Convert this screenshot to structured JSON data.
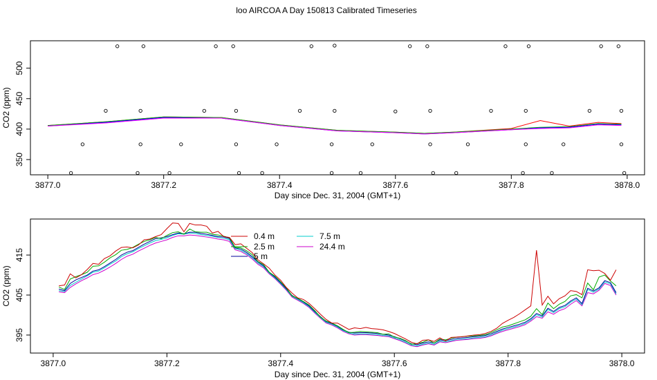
{
  "title": "loo AIRCOA A  Day 150813  Calibrated Timeseries",
  "chart_data": [
    {
      "type": "line",
      "xlabel": "Day since Dec. 31, 2004 (GMT+1)",
      "ylabel": "CO2 (ppm)",
      "xlim": [
        3876.97,
        3878.03
      ],
      "ylim": [
        325,
        545
      ],
      "xticks": [
        "3877.0",
        "3877.2",
        "3877.4",
        "3877.6",
        "3877.8",
        "3878.0"
      ],
      "yticks": [
        "350",
        "400",
        "450",
        "500"
      ],
      "series": [
        {
          "color": "#ff0000",
          "x": [
            3877.0,
            3877.1,
            3877.2,
            3877.3,
            3877.4,
            3877.5,
            3877.6,
            3877.65,
            3877.7,
            3877.8,
            3877.85,
            3877.9,
            3877.95,
            3877.99
          ],
          "y": [
            406,
            412,
            420,
            419,
            407,
            398,
            395,
            393,
            395,
            401,
            414,
            405,
            411,
            409
          ]
        },
        {
          "color": "#00aa00",
          "x": [
            3877.0,
            3877.1,
            3877.2,
            3877.3,
            3877.4,
            3877.5,
            3877.6,
            3877.65,
            3877.7,
            3877.8,
            3877.85,
            3877.9,
            3877.95,
            3877.99
          ],
          "y": [
            406,
            412,
            420,
            419,
            407,
            398,
            395,
            393,
            395,
            400,
            403,
            404,
            409,
            408
          ]
        },
        {
          "color": "#0000ff",
          "x": [
            3877.0,
            3877.1,
            3877.2,
            3877.3,
            3877.4,
            3877.5,
            3877.6,
            3877.65,
            3877.7,
            3877.8,
            3877.85,
            3877.9,
            3877.95,
            3877.99
          ],
          "y": [
            405,
            411,
            419,
            418,
            406,
            397,
            394,
            392,
            394,
            399,
            402,
            403,
            408,
            407
          ]
        },
        {
          "color": "#ff00ff",
          "x": [
            3877.0,
            3877.1,
            3877.2,
            3877.3,
            3877.4,
            3877.5,
            3877.6,
            3877.65,
            3877.7,
            3877.8,
            3877.85,
            3877.9,
            3877.95,
            3877.99
          ],
          "y": [
            405,
            410,
            418,
            418,
            406,
            397,
            394,
            392,
            394,
            399,
            401,
            402,
            407,
            406
          ]
        }
      ],
      "outliers": [
        {
          "x": 3877.04,
          "y": 328
        },
        {
          "x": 3877.06,
          "y": 375
        },
        {
          "x": 3877.1,
          "y": 430
        },
        {
          "x": 3877.12,
          "y": 536
        },
        {
          "x": 3877.155,
          "y": 328
        },
        {
          "x": 3877.16,
          "y": 375
        },
        {
          "x": 3877.16,
          "y": 430
        },
        {
          "x": 3877.165,
          "y": 536
        },
        {
          "x": 3877.21,
          "y": 328
        },
        {
          "x": 3877.23,
          "y": 375
        },
        {
          "x": 3877.27,
          "y": 430
        },
        {
          "x": 3877.29,
          "y": 536
        },
        {
          "x": 3877.32,
          "y": 536
        },
        {
          "x": 3877.325,
          "y": 430
        },
        {
          "x": 3877.325,
          "y": 375
        },
        {
          "x": 3877.33,
          "y": 328
        },
        {
          "x": 3877.37,
          "y": 328
        },
        {
          "x": 3877.395,
          "y": 375
        },
        {
          "x": 3877.435,
          "y": 430
        },
        {
          "x": 3877.455,
          "y": 536
        },
        {
          "x": 3877.49,
          "y": 328
        },
        {
          "x": 3877.49,
          "y": 375
        },
        {
          "x": 3877.495,
          "y": 430
        },
        {
          "x": 3877.495,
          "y": 537
        },
        {
          "x": 3877.54,
          "y": 328
        },
        {
          "x": 3877.56,
          "y": 375
        },
        {
          "x": 3877.6,
          "y": 429
        },
        {
          "x": 3877.625,
          "y": 536
        },
        {
          "x": 3877.655,
          "y": 536
        },
        {
          "x": 3877.66,
          "y": 430
        },
        {
          "x": 3877.66,
          "y": 375
        },
        {
          "x": 3877.665,
          "y": 328
        },
        {
          "x": 3877.705,
          "y": 328
        },
        {
          "x": 3877.725,
          "y": 375
        },
        {
          "x": 3877.765,
          "y": 430
        },
        {
          "x": 3877.79,
          "y": 536
        },
        {
          "x": 3877.82,
          "y": 328
        },
        {
          "x": 3877.825,
          "y": 375
        },
        {
          "x": 3877.825,
          "y": 430
        },
        {
          "x": 3877.83,
          "y": 536
        },
        {
          "x": 3877.87,
          "y": 328
        },
        {
          "x": 3877.89,
          "y": 375
        },
        {
          "x": 3877.935,
          "y": 430
        },
        {
          "x": 3877.955,
          "y": 536
        },
        {
          "x": 3877.985,
          "y": 536
        },
        {
          "x": 3877.99,
          "y": 430
        },
        {
          "x": 3877.99,
          "y": 375
        },
        {
          "x": 3877.995,
          "y": 328
        }
      ]
    },
    {
      "type": "line",
      "xlabel": "Day since Dec. 31, 2004 (GMT+1)",
      "ylabel": "CO2 (ppm)",
      "xlim": [
        3876.96,
        3878.04
      ],
      "ylim": [
        390.5,
        424
      ],
      "xticks": [
        "3877.0",
        "3877.2",
        "3877.4",
        "3877.6",
        "3877.8",
        "3878.0"
      ],
      "yticks": [
        "395",
        "405",
        "415"
      ],
      "legend": [
        {
          "label": "0.4 m",
          "color": "#cc0000"
        },
        {
          "label": "2.5 m",
          "color": "#00aa00"
        },
        {
          "label": "5 m",
          "color": "#000099"
        },
        {
          "label": "7.5 m",
          "color": "#00cccc"
        },
        {
          "label": "24.4 m",
          "color": "#cc00cc"
        }
      ],
      "x": [
        3877.01,
        3877.02,
        3877.03,
        3877.04,
        3877.05,
        3877.06,
        3877.07,
        3877.08,
        3877.09,
        3877.1,
        3877.11,
        3877.12,
        3877.13,
        3877.14,
        3877.15,
        3877.16,
        3877.17,
        3877.18,
        3877.19,
        3877.2,
        3877.21,
        3877.22,
        3877.23,
        3877.24,
        3877.25,
        3877.26,
        3877.27,
        3877.28,
        3877.29,
        3877.3,
        3877.31,
        3877.32,
        3877.33,
        3877.34,
        3877.35,
        3877.36,
        3877.37,
        3877.38,
        3877.39,
        3877.4,
        3877.41,
        3877.42,
        3877.43,
        3877.44,
        3877.45,
        3877.46,
        3877.47,
        3877.48,
        3877.49,
        3877.5,
        3877.51,
        3877.52,
        3877.53,
        3877.54,
        3877.55,
        3877.56,
        3877.57,
        3877.58,
        3877.59,
        3877.6,
        3877.61,
        3877.62,
        3877.63,
        3877.64,
        3877.65,
        3877.66,
        3877.67,
        3877.68,
        3877.69,
        3877.7,
        3877.71,
        3877.72,
        3877.73,
        3877.74,
        3877.75,
        3877.76,
        3877.77,
        3877.78,
        3877.79,
        3877.8,
        3877.81,
        3877.82,
        3877.83,
        3877.84,
        3877.85,
        3877.86,
        3877.87,
        3877.88,
        3877.89,
        3877.9,
        3877.91,
        3877.92,
        3877.93,
        3877.94,
        3877.95,
        3877.96,
        3877.97,
        3877.98,
        3877.99
      ],
      "series": [
        {
          "name": "0.4 m",
          "color": "#cc0000",
          "y": [
            407.3,
            407.5,
            410.3,
            409.3,
            410.1,
            411.4,
            412.9,
            412.7,
            414.1,
            414.8,
            416.0,
            416.9,
            417.0,
            416.8,
            417.5,
            418.8,
            419.0,
            419.6,
            420.1,
            421.6,
            423.0,
            422.9,
            420.8,
            422.9,
            422.5,
            422.5,
            422.2,
            420.5,
            420.9,
            419.6,
            419.4,
            417.6,
            417.8,
            416.7,
            415.6,
            413.8,
            412.8,
            411.7,
            410.0,
            408.7,
            406.9,
            405.5,
            404.3,
            403.9,
            402.9,
            401.6,
            400.2,
            398.9,
            398.0,
            398.0,
            397.2,
            396.4,
            396.8,
            396.6,
            396.9,
            396.6,
            396.5,
            396.3,
            395.9,
            395.4,
            394.7,
            394.0,
            393.2,
            392.8,
            393.7,
            393.8,
            393.4,
            394.3,
            393.5,
            394.4,
            394.5,
            394.6,
            394.8,
            395.0,
            395.1,
            395.4,
            395.9,
            396.7,
            397.9,
            398.7,
            399.4,
            400.3,
            401.3,
            402.3,
            416.2,
            402.5,
            404.7,
            402.8,
            404.1,
            404.8,
            406.1,
            405.9,
            405.1,
            411.3,
            411.1,
            411.2,
            410.4,
            408.7,
            411.3
          ]
        },
        {
          "name": "2.5 m",
          "color": "#00aa00",
          "y": [
            407.0,
            406.4,
            409.0,
            409.6,
            410.1,
            410.7,
            412.2,
            412.3,
            413.2,
            414.3,
            415.1,
            416.2,
            416.4,
            416.9,
            417.7,
            418.4,
            418.8,
            419.4,
            419.1,
            419.9,
            420.6,
            420.8,
            420.2,
            421.5,
            420.8,
            420.7,
            420.7,
            420.2,
            420.0,
            419.7,
            419.3,
            416.9,
            416.8,
            416.1,
            415.1,
            413.4,
            412.6,
            410.7,
            409.7,
            408.3,
            406.8,
            404.8,
            404.2,
            403.4,
            402.5,
            401.1,
            399.5,
            398.5,
            398.0,
            397.3,
            396.4,
            395.6,
            395.7,
            395.9,
            395.8,
            395.7,
            395.6,
            395.2,
            395.3,
            394.5,
            394.2,
            393.6,
            392.7,
            392.9,
            393.2,
            393.8,
            393.0,
            394.0,
            393.8,
            394.2,
            394.5,
            394.6,
            394.7,
            394.8,
            394.9,
            395.1,
            395.6,
            396.3,
            397.0,
            397.3,
            397.8,
            398.3,
            398.8,
            399.7,
            401.6,
            400.1,
            403.0,
            401.6,
            402.7,
            403.4,
            404.8,
            405.1,
            404.3,
            408.0,
            406.3,
            409.5,
            410.0,
            408.5,
            407.3
          ]
        },
        {
          "name": "5 m",
          "color": "#000099",
          "y": [
            406.5,
            406.1,
            407.9,
            408.8,
            409.4,
            410.0,
            411.0,
            411.3,
            412.1,
            413.0,
            413.9,
            415.0,
            415.7,
            416.1,
            416.9,
            417.7,
            418.4,
            419.1,
            419.3,
            419.6,
            420.1,
            420.5,
            420.3,
            420.7,
            420.7,
            420.4,
            420.2,
            419.9,
            419.6,
            419.5,
            419.1,
            416.8,
            416.5,
            415.7,
            414.6,
            413.3,
            412.3,
            410.7,
            409.5,
            408.1,
            406.6,
            404.9,
            404.1,
            403.3,
            402.3,
            400.9,
            399.6,
            398.4,
            397.9,
            397.2,
            396.3,
            395.7,
            395.5,
            395.6,
            395.6,
            395.5,
            395.4,
            395.2,
            395.0,
            394.6,
            394.1,
            393.5,
            392.8,
            392.6,
            393.0,
            393.3,
            393.0,
            393.8,
            393.6,
            393.9,
            394.2,
            394.3,
            394.4,
            394.6,
            394.7,
            394.9,
            395.3,
            395.9,
            396.5,
            396.9,
            397.3,
            397.7,
            398.2,
            399.1,
            400.4,
            399.8,
            401.7,
            400.9,
            401.9,
            402.4,
            403.5,
            404.3,
            402.9,
            406.7,
            406.0,
            406.8,
            408.6,
            408.1,
            405.6
          ]
        },
        {
          "name": "7.5 m",
          "color": "#00cccc",
          "y": [
            406.1,
            405.9,
            407.4,
            408.2,
            409.0,
            409.8,
            410.7,
            411.0,
            411.8,
            412.7,
            413.5,
            414.6,
            415.3,
            415.8,
            416.6,
            417.3,
            418.0,
            418.6,
            418.9,
            419.3,
            419.9,
            420.3,
            420.2,
            420.5,
            420.4,
            420.1,
            419.9,
            419.7,
            419.4,
            419.2,
            418.8,
            416.6,
            416.2,
            415.4,
            414.3,
            413.0,
            412.1,
            410.5,
            409.3,
            407.9,
            406.4,
            404.7,
            403.9,
            403.1,
            402.1,
            400.7,
            399.4,
            398.2,
            397.7,
            397.0,
            396.1,
            395.5,
            395.2,
            395.3,
            395.3,
            395.2,
            395.1,
            394.9,
            394.8,
            394.3,
            393.8,
            393.2,
            392.5,
            392.3,
            392.7,
            393.0,
            392.7,
            393.5,
            393.3,
            393.6,
            393.9,
            394.0,
            394.1,
            394.3,
            394.4,
            394.6,
            395.0,
            395.6,
            396.2,
            396.6,
            397.0,
            397.4,
            397.9,
            398.8,
            400.1,
            399.5,
            401.4,
            400.6,
            401.6,
            402.1,
            403.2,
            404.0,
            402.6,
            406.4,
            405.7,
            406.5,
            408.3,
            407.8,
            405.3
          ]
        },
        {
          "name": "24.4 m",
          "color": "#cc00cc",
          "y": [
            405.8,
            405.6,
            406.9,
            407.8,
            408.6,
            409.3,
            410.1,
            410.5,
            411.2,
            412.0,
            412.9,
            413.9,
            414.7,
            415.2,
            416.0,
            416.7,
            417.4,
            418.0,
            418.4,
            418.8,
            419.4,
            419.8,
            419.8,
            420.0,
            419.9,
            419.7,
            419.5,
            419.3,
            419.0,
            418.8,
            418.4,
            416.3,
            415.9,
            415.1,
            414.0,
            412.7,
            411.8,
            410.3,
            409.1,
            407.7,
            406.2,
            404.5,
            403.7,
            402.9,
            401.9,
            400.5,
            399.2,
            398.0,
            397.5,
            396.8,
            395.9,
            395.3,
            395.0,
            395.1,
            395.1,
            395.0,
            394.9,
            394.7,
            394.6,
            394.1,
            393.6,
            393.0,
            392.3,
            392.1,
            392.5,
            392.8,
            392.5,
            393.3,
            393.1,
            393.4,
            393.7,
            393.8,
            393.9,
            394.1,
            394.2,
            394.4,
            394.8,
            395.4,
            395.9,
            396.3,
            396.7,
            397.1,
            397.6,
            398.5,
            399.6,
            399.2,
            400.8,
            400.2,
            401.1,
            401.6,
            402.7,
            403.6,
            402.3,
            405.6,
            405.3,
            406.2,
            407.9,
            407.4,
            405.0
          ]
        }
      ]
    }
  ]
}
